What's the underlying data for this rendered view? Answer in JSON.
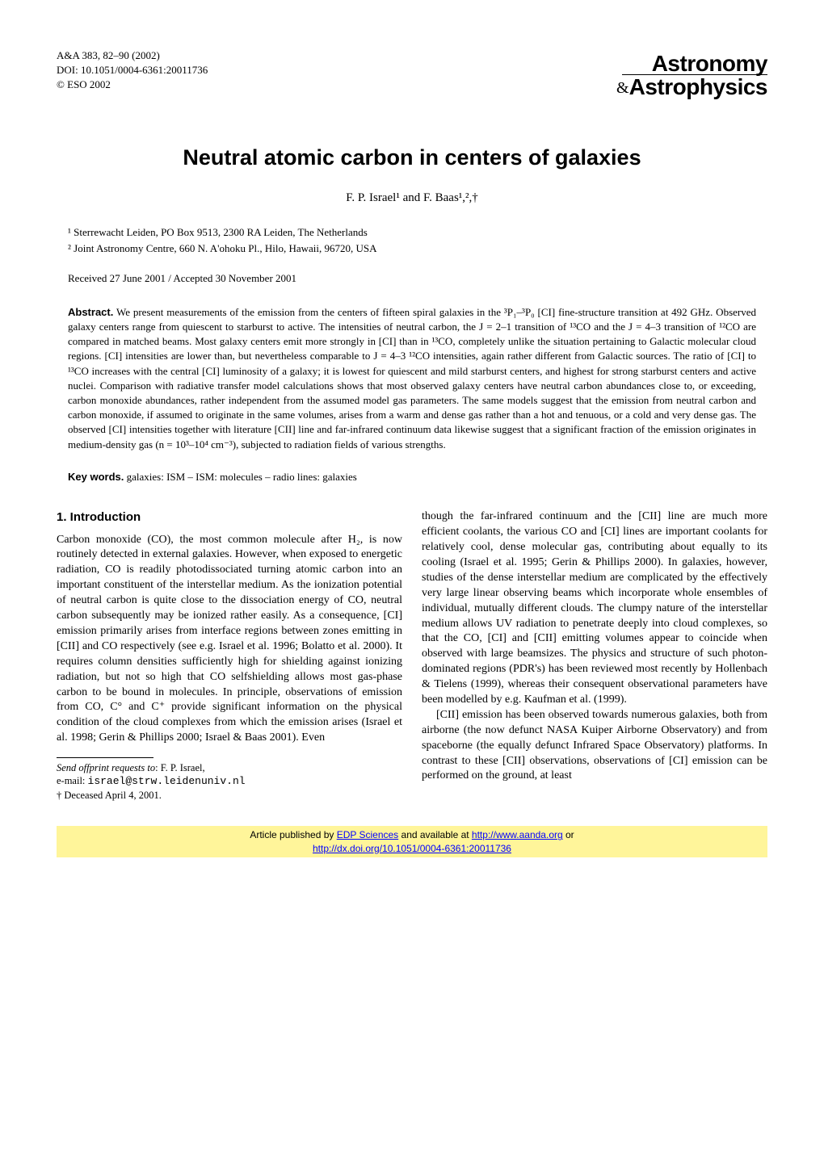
{
  "header": {
    "journal_ref": "A&A 383, 82–90 (2002)",
    "doi": "DOI: 10.1051/0004-6361:20011736",
    "copyright": "© ESO 2002",
    "logo_top": "Astronomy",
    "logo_amp": "&",
    "logo_bottom": "Astrophysics"
  },
  "title": "Neutral atomic carbon in centers of galaxies",
  "authors": "F. P. Israel¹ and F. Baas¹,²,†",
  "affiliations": [
    "¹ Sterrewacht Leiden, PO Box 9513, 2300 RA Leiden, The Netherlands",
    "² Joint Astronomy Centre, 660 N. A'ohoku Pl., Hilo, Hawaii, 96720, USA"
  ],
  "dates": "Received 27 June 2001 / Accepted 30 November 2001",
  "abstract_label": "Abstract.",
  "abstract": "We present measurements of the emission from the centers of fifteen spiral galaxies in the ³P₁–³P₀ [CI] fine-structure transition at 492 GHz. Observed galaxy centers range from quiescent to starburst to active. The intensities of neutral carbon, the J = 2–1 transition of ¹³CO and the J = 4–3 transition of ¹²CO are compared in matched beams. Most galaxy centers emit more strongly in [CI] than in ¹³CO, completely unlike the situation pertaining to Galactic molecular cloud regions. [CI] intensities are lower than, but nevertheless comparable to J = 4–3 ¹²CO intensities, again rather different from Galactic sources. The ratio of [CI] to ¹³CO increases with the central [CI] luminosity of a galaxy; it is lowest for quiescent and mild starburst centers, and highest for strong starburst centers and active nuclei. Comparison with radiative transfer model calculations shows that most observed galaxy centers have neutral carbon abundances close to, or exceeding, carbon monoxide abundances, rather independent from the assumed model gas parameters. The same models suggest that the emission from neutral carbon and carbon monoxide, if assumed to originate in the same volumes, arises from a warm and dense gas rather than a hot and tenuous, or a cold and very dense gas. The observed [CI] intensities together with literature [CII] line and far-infrared continuum data likewise suggest that a significant fraction of the emission originates in medium-density gas (n = 10³–10⁴ cm⁻³), subjected to radiation fields of various strengths.",
  "keywords_label": "Key words.",
  "keywords": "galaxies: ISM – ISM: molecules – radio lines: galaxies",
  "section1_heading": "1. Introduction",
  "col_left_p1": "Carbon monoxide (CO), the most common molecule after H₂, is now routinely detected in external galaxies. However, when exposed to energetic radiation, CO is readily photodissociated turning atomic carbon into an important constituent of the interstellar medium. As the ionization potential of neutral carbon is quite close to the dissociation energy of CO, neutral carbon subsequently may be ionized rather easily. As a consequence, [CI] emission primarily arises from interface regions between zones emitting in [CII] and CO respectively (see e.g. Israel et al. 1996; Bolatto et al. 2000). It requires column densities sufficiently high for shielding against ionizing radiation, but not so high that CO selfshielding allows most gas-phase carbon to be bound in molecules. In principle, observations of emission from CO, C° and C⁺ provide significant information on the physical condition of the cloud complexes from which the emission arises (Israel et al. 1998; Gerin & Phillips 2000; Israel & Baas 2001). Even",
  "col_right_p1": "though the far-infrared continuum and the [CII] line are much more efficient coolants, the various CO and [CI] lines are important coolants for relatively cool, dense molecular gas, contributing about equally to its cooling (Israel et al. 1995; Gerin & Phillips 2000). In galaxies, however, studies of the dense interstellar medium are complicated by the effectively very large linear observing beams which incorporate whole ensembles of individual, mutually different clouds. The clumpy nature of the interstellar medium allows UV radiation to penetrate deeply into cloud complexes, so that the CO, [CI] and [CII] emitting volumes appear to coincide when observed with large beamsizes. The physics and structure of such photon-dominated regions (PDR's) has been reviewed most recently by Hollenbach & Tielens (1999), whereas their consequent observational parameters have been modelled by e.g. Kaufman et al. (1999).",
  "col_right_p2": "[CII] emission has been observed towards numerous galaxies, both from airborne (the now defunct NASA Kuiper Airborne Observatory) and from spaceborne (the equally defunct Infrared Space Observatory) platforms. In contrast to these [CII] observations, observations of [CI] emission can be performed on the ground, at least",
  "footnotes": {
    "send_offprint_label": "Send offprint requests to",
    "send_offprint_name": ": F. P. Israel,",
    "email_label": "e-mail: ",
    "email": "israel@strw.leidenuniv.nl",
    "deceased": "† Deceased April 4, 2001."
  },
  "bottom": {
    "text1": "Article published by ",
    "link1": "EDP Sciences",
    "text2": " and available at ",
    "link2": "http://www.aanda.org",
    "text3": " or ",
    "link3": "http://dx.doi.org/10.1051/0004-6361:20011736"
  }
}
